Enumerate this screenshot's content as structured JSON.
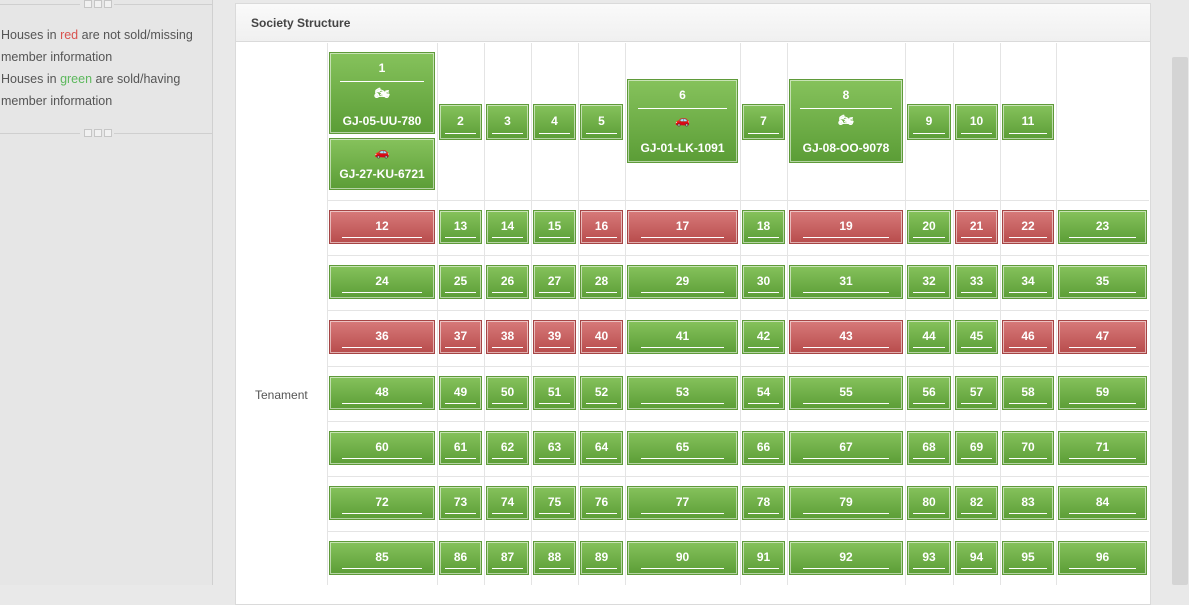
{
  "legend": {
    "line1_pre": "Houses in ",
    "red_word": "red",
    "line1_post": " are not sold/missing member information",
    "line2_pre": "Houses in ",
    "green_word": "green",
    "line2_post": " are sold/having member information"
  },
  "panel": {
    "title": "Society Structure"
  },
  "row_label": "Tenament",
  "vehicles": {
    "u1a": {
      "icon": "motorcycle-icon",
      "glyph": "🏍",
      "plate": "GJ-05-UU-780"
    },
    "u1b": {
      "icon": "car-icon",
      "glyph": "🚗",
      "plate": "GJ-27-KU-6721"
    },
    "u6": {
      "icon": "car-icon",
      "glyph": "🚗",
      "plate": "GJ-01-LK-1091"
    },
    "u8": {
      "icon": "motorcycle-icon",
      "glyph": "🏍",
      "plate": "GJ-08-OO-9078"
    }
  },
  "colors": {
    "sold": "#6aaa45",
    "unsold": "#c35c5c"
  },
  "rows": [
    {
      "units": [
        {
          "n": "1",
          "s": "sold"
        },
        {
          "n": "2",
          "s": "sold"
        },
        {
          "n": "3",
          "s": "sold"
        },
        {
          "n": "4",
          "s": "sold"
        },
        {
          "n": "5",
          "s": "sold"
        },
        {
          "n": "6",
          "s": "sold"
        },
        {
          "n": "7",
          "s": "sold"
        },
        {
          "n": "8",
          "s": "sold"
        },
        {
          "n": "9",
          "s": "sold"
        },
        {
          "n": "10",
          "s": "sold"
        },
        {
          "n": "11",
          "s": "sold"
        }
      ]
    },
    {
      "units": [
        {
          "n": "12",
          "s": "unsold"
        },
        {
          "n": "13",
          "s": "sold"
        },
        {
          "n": "14",
          "s": "sold"
        },
        {
          "n": "15",
          "s": "sold"
        },
        {
          "n": "16",
          "s": "unsold"
        },
        {
          "n": "17",
          "s": "unsold"
        },
        {
          "n": "18",
          "s": "sold"
        },
        {
          "n": "19",
          "s": "unsold"
        },
        {
          "n": "20",
          "s": "sold"
        },
        {
          "n": "21",
          "s": "unsold"
        },
        {
          "n": "22",
          "s": "unsold"
        },
        {
          "n": "23",
          "s": "sold"
        }
      ]
    },
    {
      "units": [
        {
          "n": "24",
          "s": "sold"
        },
        {
          "n": "25",
          "s": "sold"
        },
        {
          "n": "26",
          "s": "sold"
        },
        {
          "n": "27",
          "s": "sold"
        },
        {
          "n": "28",
          "s": "sold"
        },
        {
          "n": "29",
          "s": "sold"
        },
        {
          "n": "30",
          "s": "sold"
        },
        {
          "n": "31",
          "s": "sold"
        },
        {
          "n": "32",
          "s": "sold"
        },
        {
          "n": "33",
          "s": "sold"
        },
        {
          "n": "34",
          "s": "sold"
        },
        {
          "n": "35",
          "s": "sold"
        }
      ]
    },
    {
      "units": [
        {
          "n": "36",
          "s": "unsold"
        },
        {
          "n": "37",
          "s": "unsold"
        },
        {
          "n": "38",
          "s": "unsold"
        },
        {
          "n": "39",
          "s": "unsold"
        },
        {
          "n": "40",
          "s": "unsold"
        },
        {
          "n": "41",
          "s": "sold"
        },
        {
          "n": "42",
          "s": "sold"
        },
        {
          "n": "43",
          "s": "unsold"
        },
        {
          "n": "44",
          "s": "sold"
        },
        {
          "n": "45",
          "s": "sold"
        },
        {
          "n": "46",
          "s": "unsold"
        },
        {
          "n": "47",
          "s": "unsold"
        }
      ]
    },
    {
      "units": [
        {
          "n": "48",
          "s": "sold"
        },
        {
          "n": "49",
          "s": "sold"
        },
        {
          "n": "50",
          "s": "sold"
        },
        {
          "n": "51",
          "s": "sold"
        },
        {
          "n": "52",
          "s": "sold"
        },
        {
          "n": "53",
          "s": "sold"
        },
        {
          "n": "54",
          "s": "sold"
        },
        {
          "n": "55",
          "s": "sold"
        },
        {
          "n": "56",
          "s": "sold"
        },
        {
          "n": "57",
          "s": "sold"
        },
        {
          "n": "58",
          "s": "sold"
        },
        {
          "n": "59",
          "s": "sold"
        }
      ]
    },
    {
      "units": [
        {
          "n": "60",
          "s": "sold"
        },
        {
          "n": "61",
          "s": "sold"
        },
        {
          "n": "62",
          "s": "sold"
        },
        {
          "n": "63",
          "s": "sold"
        },
        {
          "n": "64",
          "s": "sold"
        },
        {
          "n": "65",
          "s": "sold"
        },
        {
          "n": "66",
          "s": "sold"
        },
        {
          "n": "67",
          "s": "sold"
        },
        {
          "n": "68",
          "s": "sold"
        },
        {
          "n": "69",
          "s": "sold"
        },
        {
          "n": "70",
          "s": "sold"
        },
        {
          "n": "71",
          "s": "sold"
        }
      ]
    },
    {
      "units": [
        {
          "n": "72",
          "s": "sold"
        },
        {
          "n": "73",
          "s": "sold"
        },
        {
          "n": "74",
          "s": "sold"
        },
        {
          "n": "75",
          "s": "sold"
        },
        {
          "n": "76",
          "s": "sold"
        },
        {
          "n": "77",
          "s": "sold"
        },
        {
          "n": "78",
          "s": "sold"
        },
        {
          "n": "79",
          "s": "sold"
        },
        {
          "n": "80",
          "s": "sold"
        },
        {
          "n": "82",
          "s": "sold"
        },
        {
          "n": "83",
          "s": "sold"
        },
        {
          "n": "84",
          "s": "sold"
        }
      ]
    },
    {
      "units": [
        {
          "n": "85",
          "s": "sold"
        },
        {
          "n": "86",
          "s": "sold"
        },
        {
          "n": "87",
          "s": "sold"
        },
        {
          "n": "88",
          "s": "sold"
        },
        {
          "n": "89",
          "s": "sold"
        },
        {
          "n": "90",
          "s": "sold"
        },
        {
          "n": "91",
          "s": "sold"
        },
        {
          "n": "92",
          "s": "sold"
        },
        {
          "n": "93",
          "s": "sold"
        },
        {
          "n": "94",
          "s": "sold"
        },
        {
          "n": "95",
          "s": "sold"
        },
        {
          "n": "96",
          "s": "sold"
        }
      ]
    }
  ]
}
